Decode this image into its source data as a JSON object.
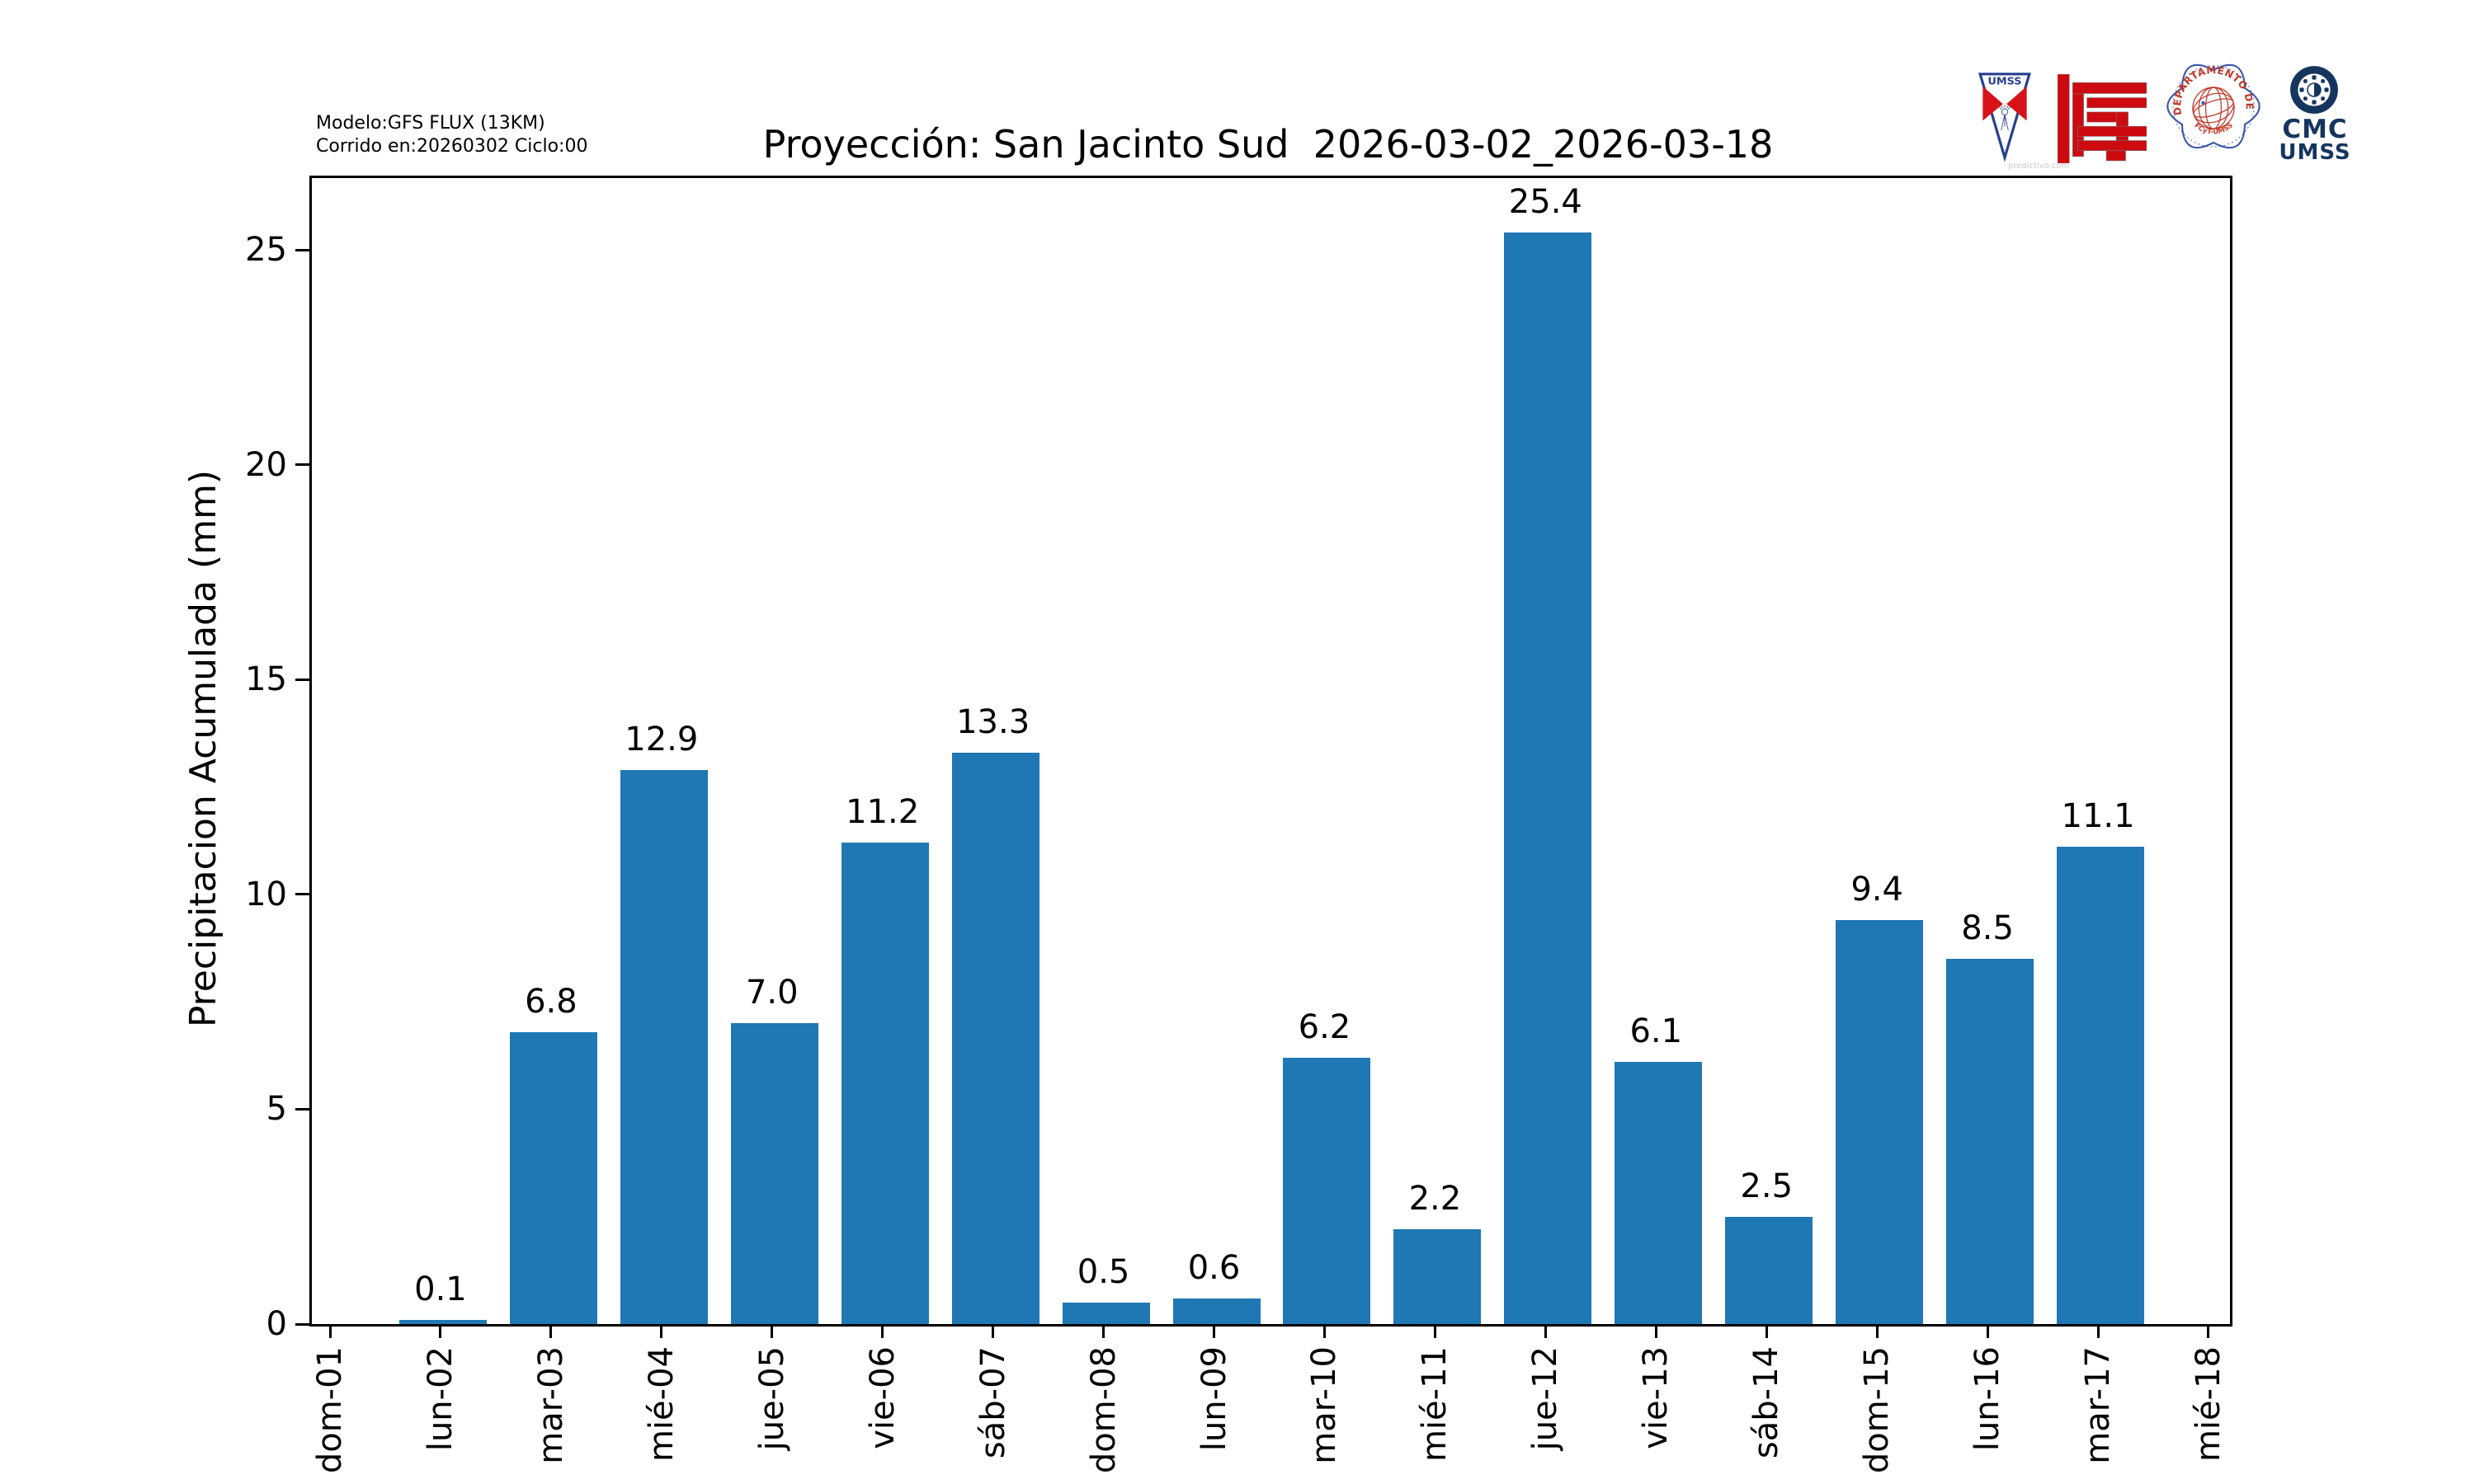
{
  "header": {
    "model_line1": "Modelo:GFS FLUX (13KM)",
    "model_line2": "Corrido en:20260302 Ciclo:00",
    "title": "Proyección: San Jacinto Sud  2026-03-02_2026-03-18"
  },
  "chart_data": {
    "type": "bar",
    "title": "Proyección: San Jacinto Sud  2026-03-02_2026-03-18",
    "xlabel": "",
    "ylabel": "Precipitacion Acumulada (mm)",
    "categories": [
      "dom-01",
      "lun-02",
      "mar-03",
      "mié-04",
      "jue-05",
      "vie-06",
      "sáb-07",
      "dom-08",
      "lun-09",
      "mar-10",
      "mié-11",
      "jue-12",
      "vie-13",
      "sáb-14",
      "dom-15",
      "lun-16",
      "mar-17",
      "mié-18"
    ],
    "values": [
      null,
      0.1,
      6.8,
      12.9,
      7.0,
      11.2,
      13.3,
      0.5,
      0.6,
      6.2,
      2.2,
      25.4,
      6.1,
      2.5,
      9.4,
      8.5,
      11.1,
      null
    ],
    "yticks": [
      0,
      5,
      10,
      15,
      20,
      25
    ],
    "ylim": [
      0,
      26.7
    ],
    "grid": false,
    "legend": "none",
    "bar_color": "#1f77b4",
    "value_labels_shown": true
  },
  "logos": {
    "umss_shield": {
      "label": "UMSS",
      "watermark": "predictivo.com",
      "blue": "#27408f",
      "red": "#d8121a"
    },
    "fcyt": {
      "red": "#cc0a10"
    },
    "fisica_seal": {
      "top_text": "DEPARTAMENTO DE FÍSICA",
      "bottom_text": "FCyT-UMSS",
      "blue": "#3a57a7",
      "red": "#c0392b"
    },
    "cmc": {
      "line1": "CMC",
      "line2": "UMSS",
      "navy": "#16355e"
    }
  }
}
